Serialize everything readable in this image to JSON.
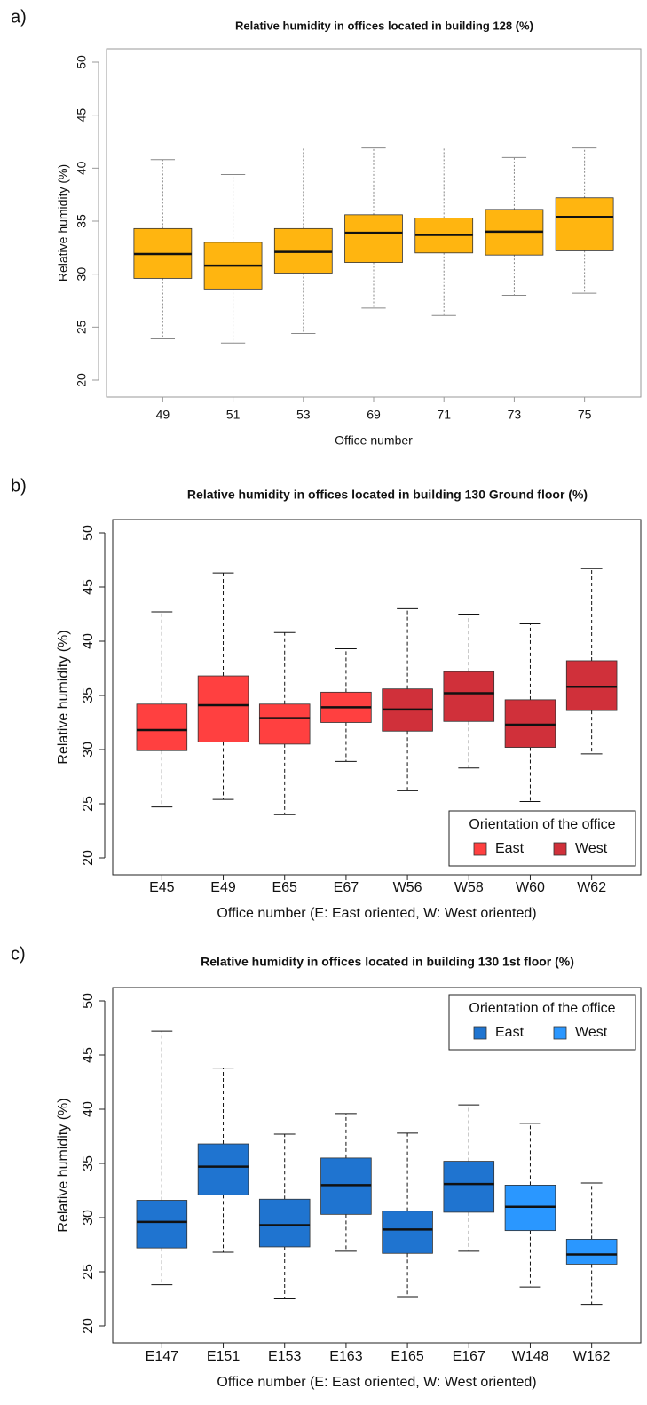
{
  "chart_data": [
    {
      "type": "box",
      "panel": "a)",
      "title": "Relative humidity in offices located in building 128 (%)",
      "xlabel": "Office number",
      "ylabel": "Relative humidity (%)",
      "categories": [
        "49",
        "51",
        "53",
        "69",
        "71",
        "73",
        "75"
      ],
      "ylim": [
        20,
        50
      ],
      "yticks": [
        20,
        25,
        30,
        35,
        40,
        45,
        50
      ],
      "series": [
        {
          "color": "#ffb510",
          "min": [
            23.9,
            23.5,
            24.4,
            26.8,
            26.1,
            28.0,
            28.2
          ],
          "q1": [
            29.6,
            28.6,
            30.1,
            31.1,
            32.0,
            31.8,
            32.2
          ],
          "median": [
            31.9,
            30.8,
            32.1,
            33.9,
            33.7,
            34.0,
            35.4
          ],
          "q3": [
            34.3,
            33.0,
            34.3,
            35.6,
            35.3,
            36.1,
            37.2
          ],
          "max": [
            40.8,
            39.4,
            42.0,
            41.9,
            42.0,
            41.0,
            41.9
          ]
        }
      ]
    },
    {
      "type": "box",
      "panel": "b)",
      "title": "Relative humidity in offices located in building 130 Ground floor (%)",
      "xlabel": "Office number (E: East oriented, W: West oriented)",
      "ylabel": "Relative humidity (%)",
      "categories": [
        "E45",
        "E49",
        "E65",
        "E67",
        "W56",
        "W58",
        "W60",
        "W62"
      ],
      "ylim": [
        20,
        50
      ],
      "yticks": [
        20,
        25,
        30,
        35,
        40,
        45,
        50
      ],
      "legend": {
        "title": "Orientation of the office",
        "position": "bottom right"
      },
      "series": [
        {
          "name": "East",
          "color": "#ff4040",
          "min": [
            24.7,
            25.4,
            24.0,
            28.9,
            null,
            null,
            null,
            null
          ],
          "q1": [
            29.9,
            30.7,
            30.5,
            32.5,
            null,
            null,
            null,
            null
          ],
          "median": [
            31.8,
            34.1,
            32.9,
            33.9,
            null,
            null,
            null,
            null
          ],
          "q3": [
            34.2,
            36.8,
            34.2,
            35.3,
            null,
            null,
            null,
            null
          ],
          "max": [
            42.7,
            46.3,
            40.8,
            39.3,
            null,
            null,
            null,
            null
          ]
        },
        {
          "name": "West",
          "color": "#d0303a",
          "min": [
            null,
            null,
            null,
            null,
            26.2,
            28.3,
            25.2,
            29.6
          ],
          "q1": [
            null,
            null,
            null,
            null,
            31.7,
            32.6,
            30.2,
            33.6
          ],
          "median": [
            null,
            null,
            null,
            null,
            33.7,
            35.2,
            32.3,
            35.8
          ],
          "q3": [
            null,
            null,
            null,
            null,
            35.6,
            37.2,
            34.6,
            38.2
          ],
          "max": [
            null,
            null,
            null,
            null,
            43.0,
            42.5,
            41.6,
            46.7
          ]
        }
      ]
    },
    {
      "type": "box",
      "panel": "c)",
      "title": "Relative humidity in offices located in building 130 1st floor (%)",
      "xlabel": "Office number (E: East oriented, W: West oriented)",
      "ylabel": "Relative humidity (%)",
      "categories": [
        "E147",
        "E151",
        "E153",
        "E163",
        "E165",
        "E167",
        "W148",
        "W162"
      ],
      "ylim": [
        20,
        50
      ],
      "yticks": [
        20,
        25,
        30,
        35,
        40,
        45,
        50
      ],
      "legend": {
        "title": "Orientation of the office",
        "position": "top right"
      },
      "series": [
        {
          "name": "East",
          "color": "#1f74d0",
          "min": [
            23.8,
            26.8,
            22.5,
            26.9,
            22.7,
            26.9,
            null,
            null
          ],
          "q1": [
            27.2,
            32.1,
            27.3,
            30.3,
            26.7,
            30.5,
            null,
            null
          ],
          "median": [
            29.6,
            34.7,
            29.3,
            33.0,
            28.9,
            33.1,
            null,
            null
          ],
          "q3": [
            31.6,
            36.8,
            31.7,
            35.5,
            30.6,
            35.2,
            null,
            null
          ],
          "max": [
            47.2,
            43.8,
            37.7,
            39.6,
            37.8,
            40.4,
            null,
            null
          ]
        },
        {
          "name": "West",
          "color": "#2a97ff",
          "min": [
            null,
            null,
            null,
            null,
            null,
            null,
            23.6,
            22.0
          ],
          "q1": [
            null,
            null,
            null,
            null,
            null,
            null,
            28.8,
            25.7
          ],
          "median": [
            null,
            null,
            null,
            null,
            null,
            null,
            31.0,
            26.6
          ],
          "q3": [
            null,
            null,
            null,
            null,
            null,
            null,
            33.0,
            28.0
          ],
          "max": [
            null,
            null,
            null,
            null,
            null,
            null,
            38.7,
            33.2
          ]
        }
      ]
    }
  ]
}
